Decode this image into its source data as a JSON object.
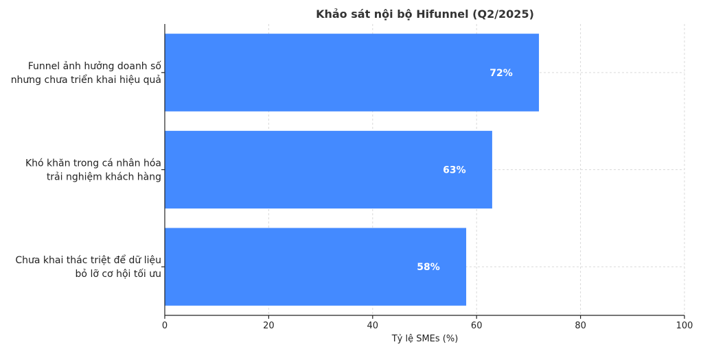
{
  "chart_data": {
    "type": "bar",
    "orientation": "horizontal",
    "title": "Khảo sát nội bộ Hifunnel (Q2/2025)",
    "xlabel": "Tỷ lệ SMEs (%)",
    "ylabel": "",
    "xlim": [
      0,
      100
    ],
    "xticks": [
      0,
      20,
      40,
      60,
      80,
      100
    ],
    "grid": true,
    "bar_color": "#448aff",
    "categories": [
      [
        "Funnel ảnh hưởng doanh số",
        "nhưng chưa triển khai hiệu quả"
      ],
      [
        "Khó khăn trong cá nhân hóa",
        "trải nghiệm khách hàng"
      ],
      [
        "Chưa khai thác triệt để dữ liệu",
        "bỏ lỡ cơ hội tối ưu"
      ]
    ],
    "values": [
      72,
      63,
      58
    ],
    "data_labels": [
      "72%",
      "63%",
      "58%"
    ]
  }
}
